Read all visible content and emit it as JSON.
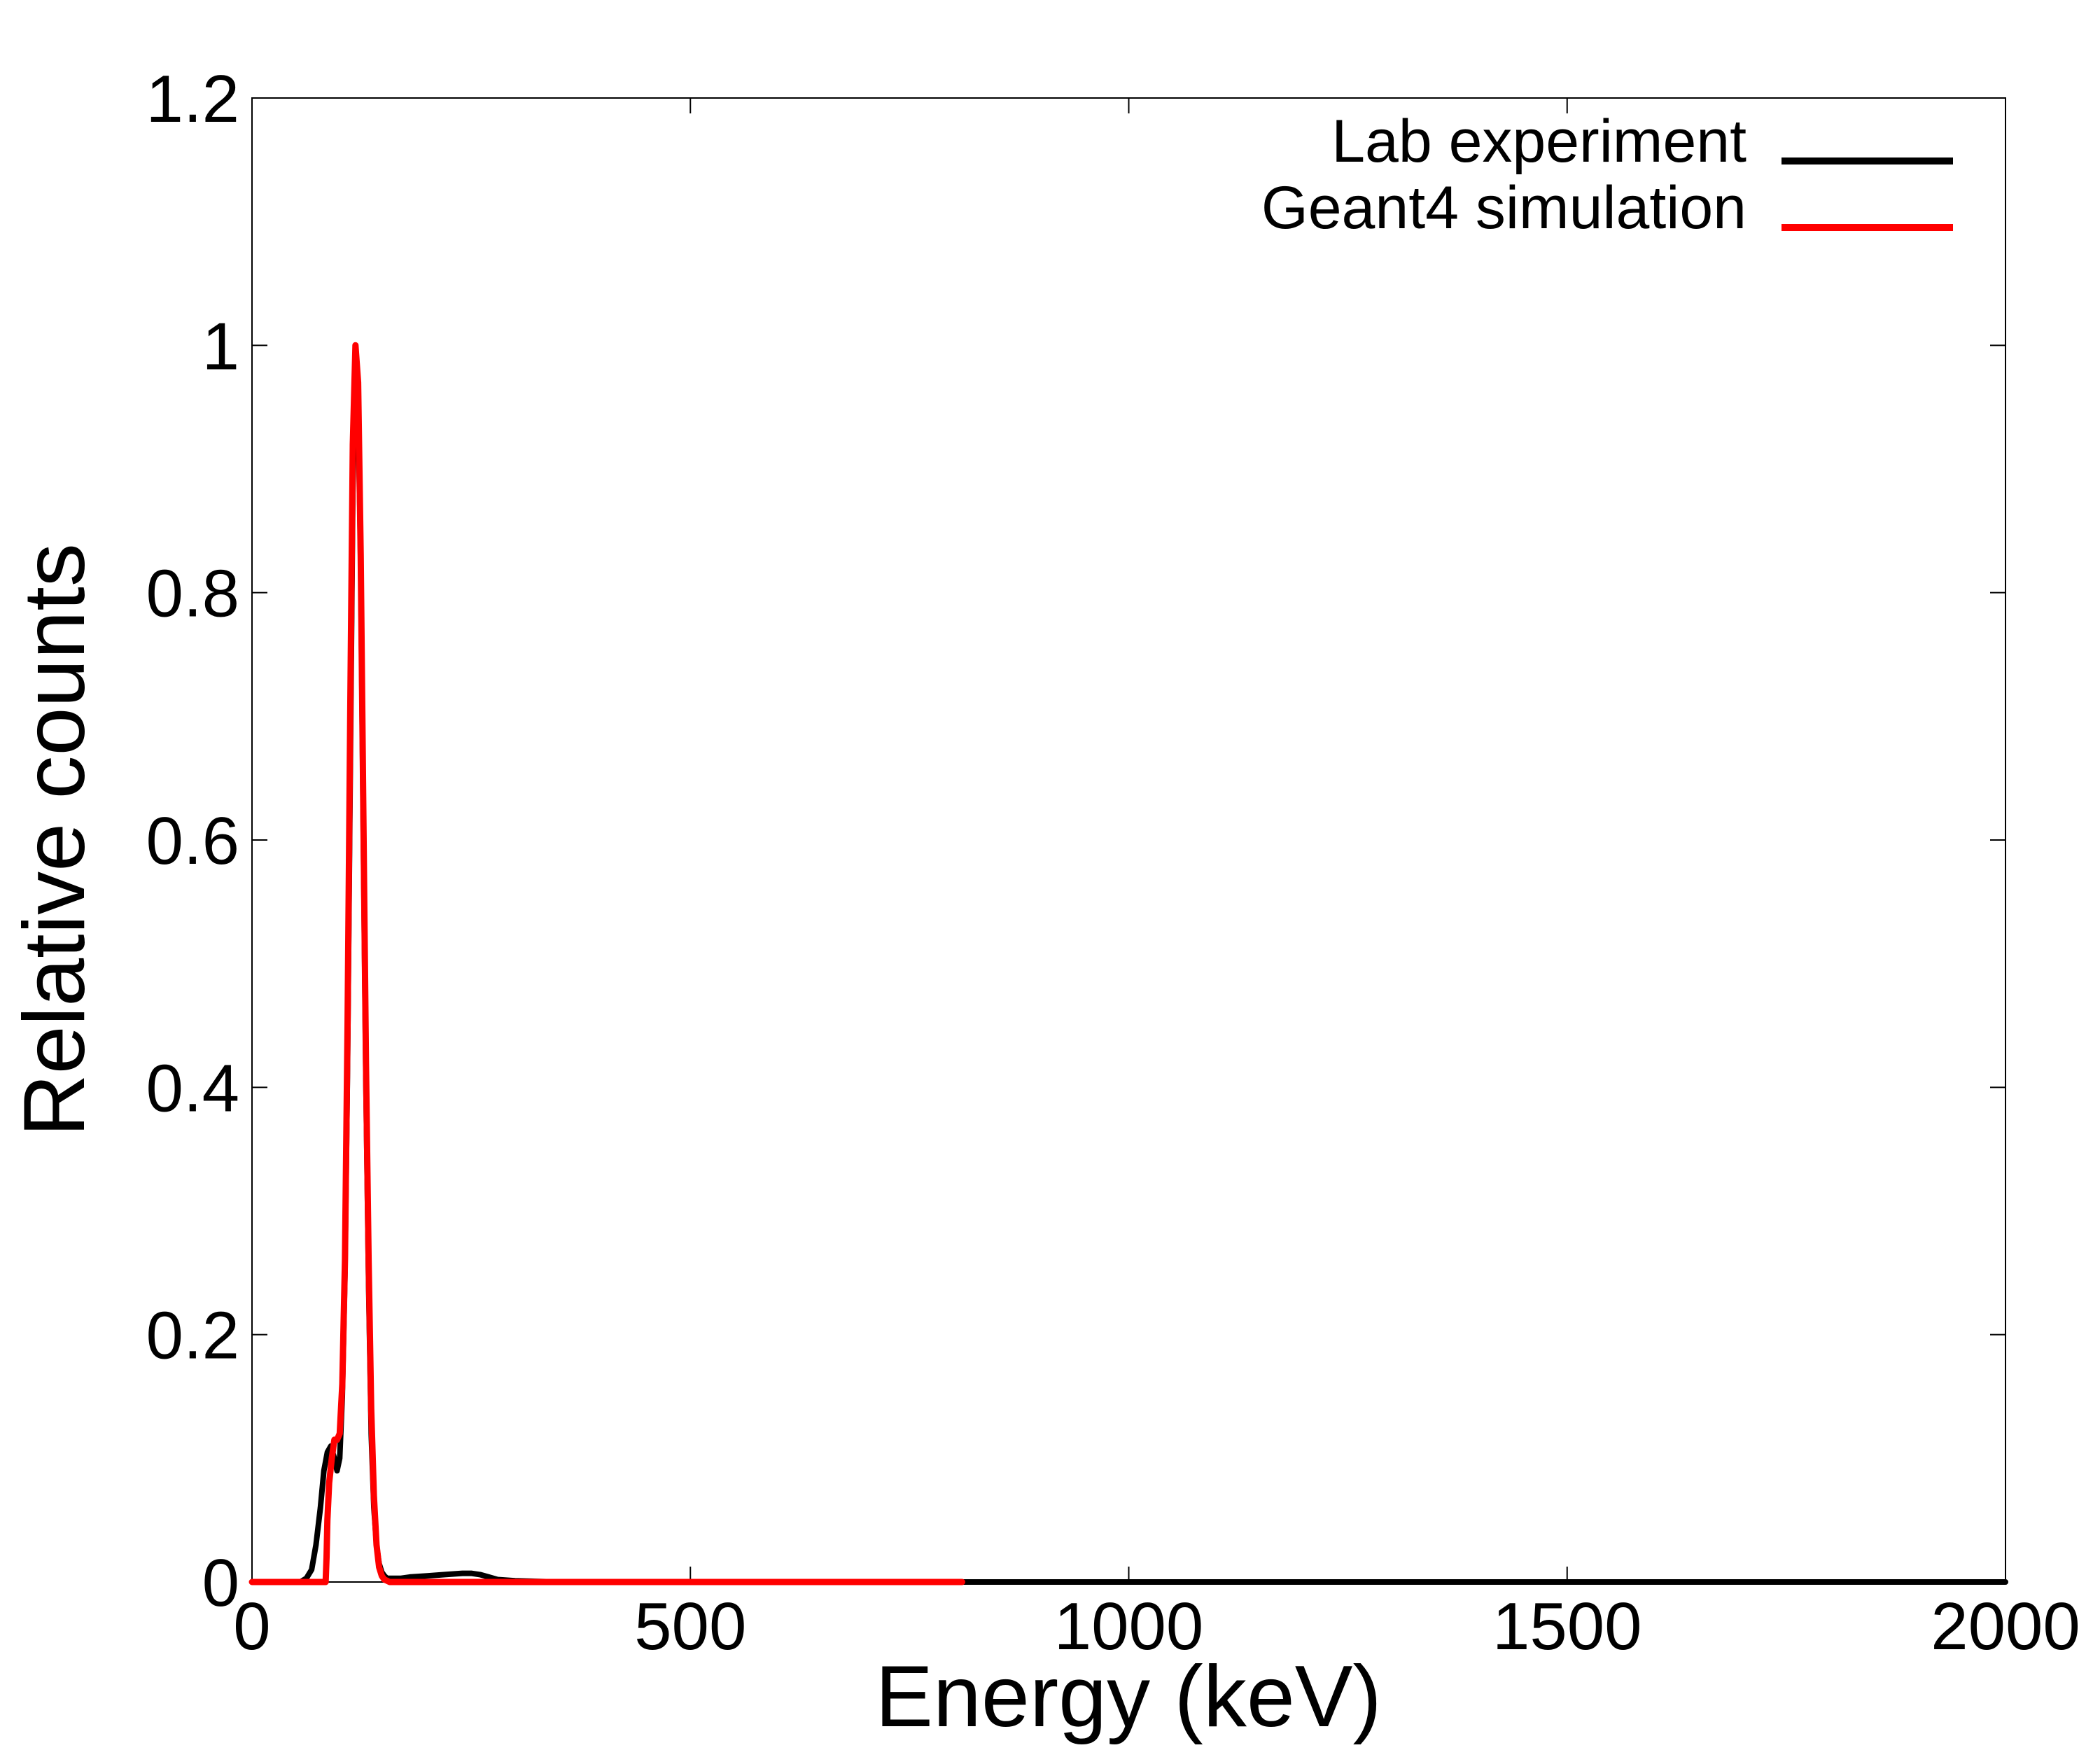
{
  "chart_data": {
    "type": "line",
    "title": "",
    "xlabel": "Energy (keV)",
    "ylabel": "Relative counts",
    "xlim": [
      0,
      2000
    ],
    "ylim": [
      0,
      1.2
    ],
    "x_ticks": [
      "0",
      "500",
      "1000",
      "1500",
      "2000"
    ],
    "y_ticks": [
      "0",
      "0.2",
      "0.4",
      "0.6",
      "0.8",
      "1",
      "1.2"
    ],
    "grid": false,
    "legend_position": "top-right",
    "series": [
      {
        "name": "Lab experiment",
        "color": "#000000",
        "x": [
          0,
          55,
          62,
          68,
          73,
          78,
          82,
          86,
          90,
          94,
          97,
          100,
          103,
          106,
          109,
          112,
          115,
          118,
          121,
          124,
          127,
          130,
          133,
          136,
          139,
          142,
          145,
          148,
          151,
          154,
          157,
          160,
          165,
          170,
          180,
          200,
          220,
          240,
          250,
          260,
          270,
          280,
          300,
          350,
          500,
          800,
          1200,
          1600,
          2000
        ],
        "y": [
          0,
          0,
          0.003,
          0.01,
          0.03,
          0.06,
          0.09,
          0.105,
          0.11,
          0.1,
          0.09,
          0.1,
          0.15,
          0.25,
          0.42,
          0.65,
          0.88,
          0.99,
          0.96,
          0.82,
          0.6,
          0.4,
          0.24,
          0.12,
          0.06,
          0.03,
          0.015,
          0.008,
          0.005,
          0.003,
          0.003,
          0.003,
          0.003,
          0.003,
          0.004,
          0.005,
          0.006,
          0.007,
          0.007,
          0.006,
          0.004,
          0.002,
          0.001,
          0,
          0,
          0,
          0,
          0,
          0
        ]
      },
      {
        "name": "Geant4 simulation",
        "color": "#ff0000",
        "x": [
          0,
          84,
          85,
          86,
          88,
          91,
          94,
          97,
          100,
          103,
          106,
          109,
          112,
          115,
          118,
          121,
          124,
          127,
          130,
          133,
          136,
          139,
          142,
          145,
          148,
          151,
          154,
          157,
          160,
          170,
          200,
          300,
          500,
          810
        ],
        "y": [
          0,
          0,
          0.02,
          0.05,
          0.08,
          0.1,
          0.115,
          0.115,
          0.12,
          0.16,
          0.26,
          0.45,
          0.7,
          0.92,
          1.0,
          0.97,
          0.83,
          0.62,
          0.42,
          0.26,
          0.14,
          0.07,
          0.03,
          0.012,
          0.005,
          0.002,
          0.001,
          0,
          0,
          0,
          0,
          0,
          0,
          0
        ]
      }
    ]
  }
}
